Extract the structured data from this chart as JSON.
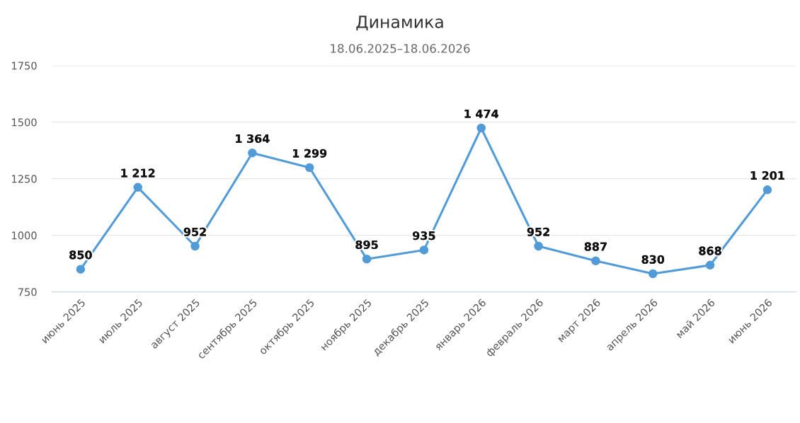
{
  "chart_data": {
    "type": "line",
    "title": "Динамика",
    "subtitle": "18.06.2025–18.06.2026",
    "categories": [
      "июнь 2025",
      "июль 2025",
      "август 2025",
      "сентябрь 2025",
      "октябрь 2025",
      "ноябрь 2025",
      "декабрь 2025",
      "январь 2026",
      "февраль 2026",
      "март 2026",
      "апрель 2026",
      "май 2026",
      "июнь 2026"
    ],
    "series": [
      {
        "color": "#529bd9",
        "values": [
          850,
          1212,
          952,
          1364,
          1299,
          895,
          935,
          1474,
          952,
          887,
          830,
          868,
          1201
        ],
        "value_labels": [
          "850",
          "1 212",
          "952",
          "1 364",
          "1 299",
          "895",
          "935",
          "1 474",
          "952",
          "887",
          "830",
          "868",
          "1 201"
        ]
      }
    ],
    "ylim": [
      750,
      1750
    ],
    "yticks": [
      750,
      1000,
      1250,
      1500,
      1750
    ],
    "grid": "y",
    "marker": "circle",
    "line_style": "solid"
  }
}
